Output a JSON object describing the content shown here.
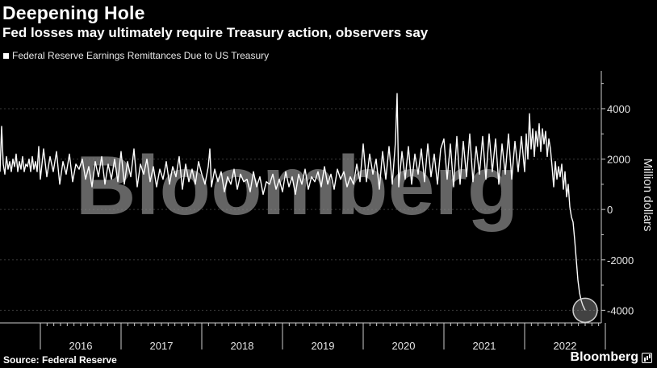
{
  "header": {
    "title": "Deepening Hole",
    "subtitle": "Fed losses may ultimately require Treasury action, observers say"
  },
  "footer": {
    "source": "Source: Federal Reserve",
    "brand": "Bloomberg"
  },
  "watermark": "Bloomberg",
  "colors": {
    "background": "#000000",
    "line": "#ffffff",
    "grid": "#3a3a3a",
    "watermark": "#8a8a8a"
  },
  "chart_data": {
    "type": "line",
    "legend": "Federal Reserve Earnings Remittances Due to US Treasury",
    "legend_position": "top-left",
    "ylabel": "Million dollars",
    "y_axis_side": "right",
    "ylim": [
      -4500,
      5500
    ],
    "yticks": [
      4000,
      2000,
      0,
      -2000,
      -4000
    ],
    "ytick_labels": [
      "4000",
      "2000",
      "0",
      "-2000",
      "-4000"
    ],
    "xlim": [
      2015.5,
      2022.95
    ],
    "x_tick_labels": [
      "2016",
      "2017",
      "2018",
      "2019",
      "2020",
      "2021",
      "2022"
    ],
    "grid": "horizontal dashed",
    "highlight": {
      "x": 2022.75,
      "y": -4000,
      "shape": "circle"
    },
    "series": [
      {
        "name": "Federal Reserve Earnings Remittances Due to US Treasury",
        "x": [
          2015.5,
          2015.52,
          2015.54,
          2015.56,
          2015.58,
          2015.6,
          2015.62,
          2015.64,
          2015.66,
          2015.68,
          2015.7,
          2015.72,
          2015.74,
          2015.76,
          2015.78,
          2015.8,
          2015.82,
          2015.84,
          2015.86,
          2015.88,
          2015.9,
          2015.92,
          2015.94,
          2015.96,
          2015.98,
          2016.0,
          2016.04,
          2016.08,
          2016.12,
          2016.16,
          2016.2,
          2016.24,
          2016.28,
          2016.32,
          2016.36,
          2016.4,
          2016.44,
          2016.48,
          2016.52,
          2016.56,
          2016.6,
          2016.64,
          2016.68,
          2016.72,
          2016.76,
          2016.8,
          2016.84,
          2016.88,
          2016.92,
          2016.96,
          2017.0,
          2017.04,
          2017.08,
          2017.12,
          2017.16,
          2017.2,
          2017.24,
          2017.28,
          2017.32,
          2017.36,
          2017.4,
          2017.44,
          2017.48,
          2017.52,
          2017.56,
          2017.6,
          2017.64,
          2017.68,
          2017.72,
          2017.76,
          2017.8,
          2017.84,
          2017.88,
          2017.92,
          2017.96,
          2018.0,
          2018.04,
          2018.08,
          2018.1,
          2018.12,
          2018.16,
          2018.2,
          2018.24,
          2018.28,
          2018.32,
          2018.36,
          2018.4,
          2018.44,
          2018.48,
          2018.52,
          2018.56,
          2018.6,
          2018.64,
          2018.68,
          2018.72,
          2018.76,
          2018.8,
          2018.84,
          2018.88,
          2018.92,
          2018.96,
          2019.0,
          2019.04,
          2019.08,
          2019.12,
          2019.16,
          2019.2,
          2019.24,
          2019.28,
          2019.32,
          2019.36,
          2019.4,
          2019.44,
          2019.48,
          2019.52,
          2019.56,
          2019.6,
          2019.64,
          2019.68,
          2019.72,
          2019.76,
          2019.8,
          2019.84,
          2019.88,
          2019.92,
          2019.96,
          2020.0,
          2020.04,
          2020.08,
          2020.12,
          2020.16,
          2020.2,
          2020.24,
          2020.28,
          2020.32,
          2020.36,
          2020.4,
          2020.42,
          2020.44,
          2020.48,
          2020.52,
          2020.56,
          2020.6,
          2020.64,
          2020.68,
          2020.72,
          2020.76,
          2020.8,
          2020.84,
          2020.88,
          2020.92,
          2020.96,
          2021.0,
          2021.04,
          2021.08,
          2021.12,
          2021.16,
          2021.2,
          2021.24,
          2021.28,
          2021.32,
          2021.36,
          2021.4,
          2021.44,
          2021.48,
          2021.52,
          2021.56,
          2021.6,
          2021.64,
          2021.68,
          2021.72,
          2021.76,
          2021.8,
          2021.84,
          2021.88,
          2021.92,
          2021.96,
          2022.0,
          2022.02,
          2022.04,
          2022.06,
          2022.08,
          2022.1,
          2022.12,
          2022.14,
          2022.16,
          2022.18,
          2022.2,
          2022.22,
          2022.24,
          2022.26,
          2022.28,
          2022.3,
          2022.32,
          2022.34,
          2022.36,
          2022.38,
          2022.4,
          2022.42,
          2022.44,
          2022.46,
          2022.48,
          2022.5,
          2022.52,
          2022.54,
          2022.56,
          2022.58,
          2022.6,
          2022.62,
          2022.64,
          2022.66,
          2022.68,
          2022.7,
          2022.72,
          2022.75
        ],
        "y": [
          1500,
          3300,
          1800,
          1400,
          2100,
          1600,
          1900,
          1500,
          2000,
          1700,
          2200,
          1500,
          1900,
          1600,
          2100,
          1500,
          1800,
          1700,
          2000,
          1500,
          2100,
          1600,
          1900,
          1500,
          2500,
          1200,
          2400,
          1300,
          2100,
          1500,
          2300,
          1000,
          1900,
          1400,
          2200,
          1100,
          1800,
          1600,
          2000,
          1200,
          1700,
          900,
          1900,
          1300,
          2100,
          1000,
          1800,
          1200,
          2000,
          1100,
          2300,
          1000,
          1900,
          1300,
          2400,
          900,
          1800,
          1400,
          2000,
          1100,
          1700,
          900,
          1600,
          1200,
          1900,
          1000,
          1700,
          1300,
          2100,
          800,
          1800,
          1100,
          1600,
          1000,
          1900,
          1400,
          1000,
          1700,
          2400,
          900,
          1600,
          1100,
          1500,
          700,
          1300,
          1000,
          1600,
          800,
          1400,
          1100,
          1200,
          700,
          1500,
          900,
          1300,
          600,
          1100,
          1000,
          1400,
          800,
          1200,
          700,
          1500,
          900,
          1300,
          600,
          1400,
          1000,
          1600,
          800,
          1300,
          1100,
          1500,
          900,
          1700,
          1000,
          1400,
          800,
          1600,
          1200,
          1500,
          900,
          1300,
          1000,
          1800,
          1100,
          2600,
          1100,
          2200,
          1400,
          2000,
          800,
          2300,
          1200,
          2500,
          1000,
          2700,
          4600,
          900,
          2300,
          1200,
          2500,
          1000,
          2200,
          1400,
          2400,
          1100,
          2600,
          1300,
          2200,
          1000,
          2400,
          2800,
          1200,
          2600,
          900,
          2900,
          1000,
          2700,
          1300,
          3000,
          1100,
          2500,
          1400,
          2900,
          1200,
          3000,
          1500,
          2800,
          1000,
          2600,
          1400,
          3000,
          1200,
          2700,
          1500,
          2900,
          1500,
          3000,
          2000,
          3800,
          2400,
          3200,
          2100,
          3100,
          2500,
          3400,
          2300,
          3200,
          2600,
          3100,
          2100,
          2800,
          2400,
          1700,
          900,
          1900,
          1200,
          1700,
          1300,
          1800,
          800,
          1500,
          500,
          1000,
          100,
          -300,
          -500,
          -1200,
          -2000,
          -2800,
          -3300,
          -3600,
          -3800,
          -4000
        ]
      }
    ]
  }
}
